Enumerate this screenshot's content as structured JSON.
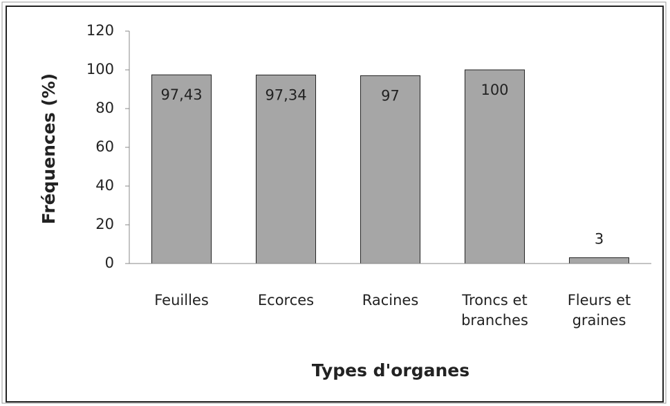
{
  "chart_data": {
    "type": "bar",
    "y_label": "Fréquences (%)",
    "x_label": "Types d'organes",
    "categories": [
      "Feuilles",
      "Ecorces",
      "Racines",
      "Troncs et branches",
      "Fleurs et graines"
    ],
    "values": [
      97.43,
      97.34,
      97,
      100,
      3
    ],
    "value_labels": [
      "97,43",
      "97,34",
      "97",
      "100",
      "3"
    ],
    "color": "#a6a6a6",
    "ylim": [
      0,
      120
    ],
    "yticks": [
      0,
      20,
      40,
      60,
      80,
      100,
      120
    ],
    "grid": false
  }
}
